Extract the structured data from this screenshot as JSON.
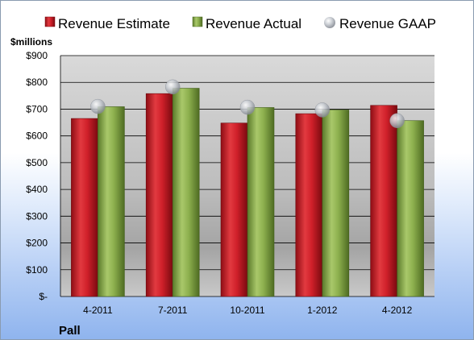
{
  "chart_data": {
    "type": "bar",
    "unit_label": "$millions",
    "company": "Pall",
    "categories": [
      "4-2011",
      "7-2011",
      "10-2011",
      "1-2012",
      "4-2012"
    ],
    "series": [
      {
        "name": "Revenue Estimate",
        "kind": "bar",
        "color": "#d0202a",
        "values": [
          665,
          758,
          648,
          683,
          714
        ]
      },
      {
        "name": "Revenue Actual",
        "kind": "bar",
        "color": "#8db04e",
        "values": [
          709,
          778,
          706,
          697,
          657
        ]
      },
      {
        "name": "Revenue GAAP",
        "kind": "marker",
        "color": "#b8bcc4",
        "values": [
          710,
          783,
          707,
          697,
          657
        ]
      }
    ],
    "ylim": [
      0,
      900
    ],
    "yticks": [
      0,
      100,
      200,
      300,
      400,
      500,
      600,
      700,
      800,
      900
    ],
    "ytick_labels": [
      "$-",
      "$100",
      "$200",
      "$300",
      "$400",
      "$500",
      "$600",
      "$700",
      "$800",
      "$900"
    ],
    "grid": true,
    "legend_position": "top"
  }
}
